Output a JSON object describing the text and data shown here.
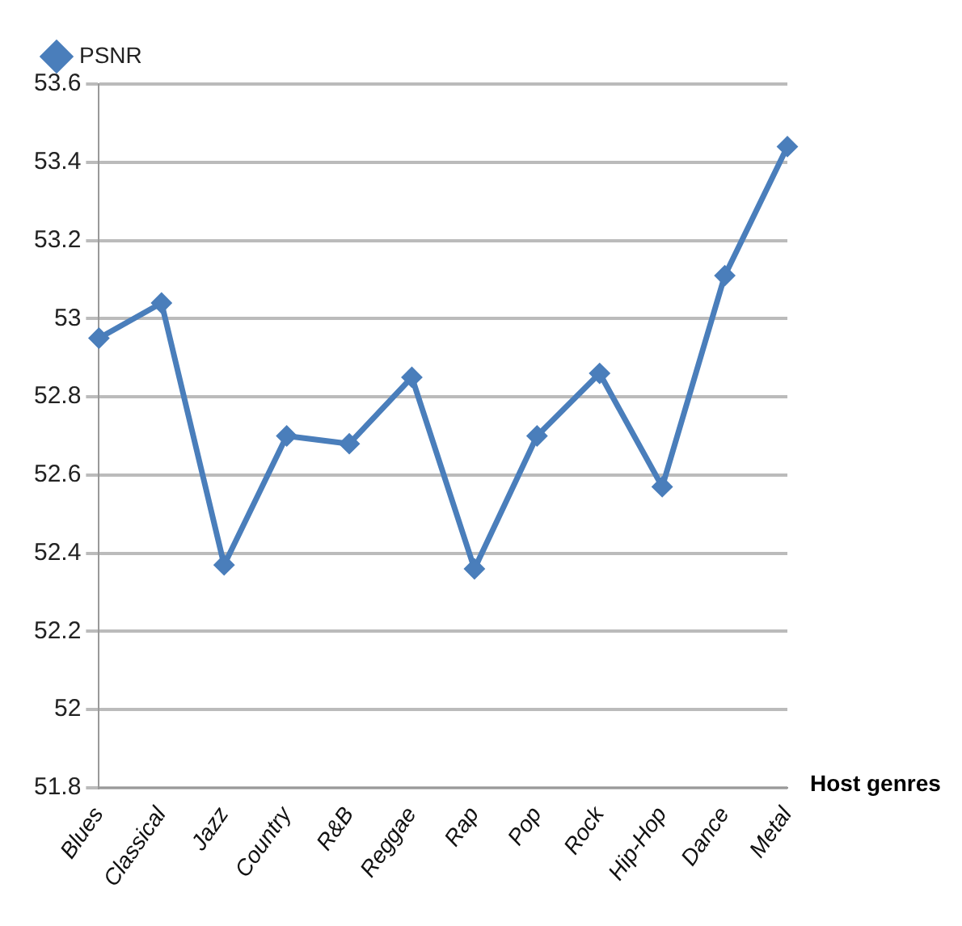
{
  "chart_data": {
    "type": "line",
    "xlabel": "Host genres",
    "categories": [
      "Blues",
      "Classical",
      "Jazz",
      "Country",
      "R&B",
      "Reggae",
      "Rap",
      "Pop",
      "Rock",
      "Hip-Hop",
      "Dance",
      "Metal"
    ],
    "series": [
      {
        "name": "PSNR",
        "color": "#4a7ebb",
        "values": [
          52.95,
          53.04,
          52.37,
          52.7,
          52.68,
          52.85,
          52.36,
          52.7,
          52.86,
          52.57,
          53.11,
          53.44
        ]
      }
    ],
    "ylim": [
      51.8,
      53.6
    ],
    "yticks": [
      51.8,
      52,
      52.2,
      52.4,
      52.6,
      52.8,
      53,
      53.2,
      53.4,
      53.6
    ],
    "grid": "y",
    "legend": "top left",
    "marker": "diamond",
    "line_style": "solid"
  }
}
